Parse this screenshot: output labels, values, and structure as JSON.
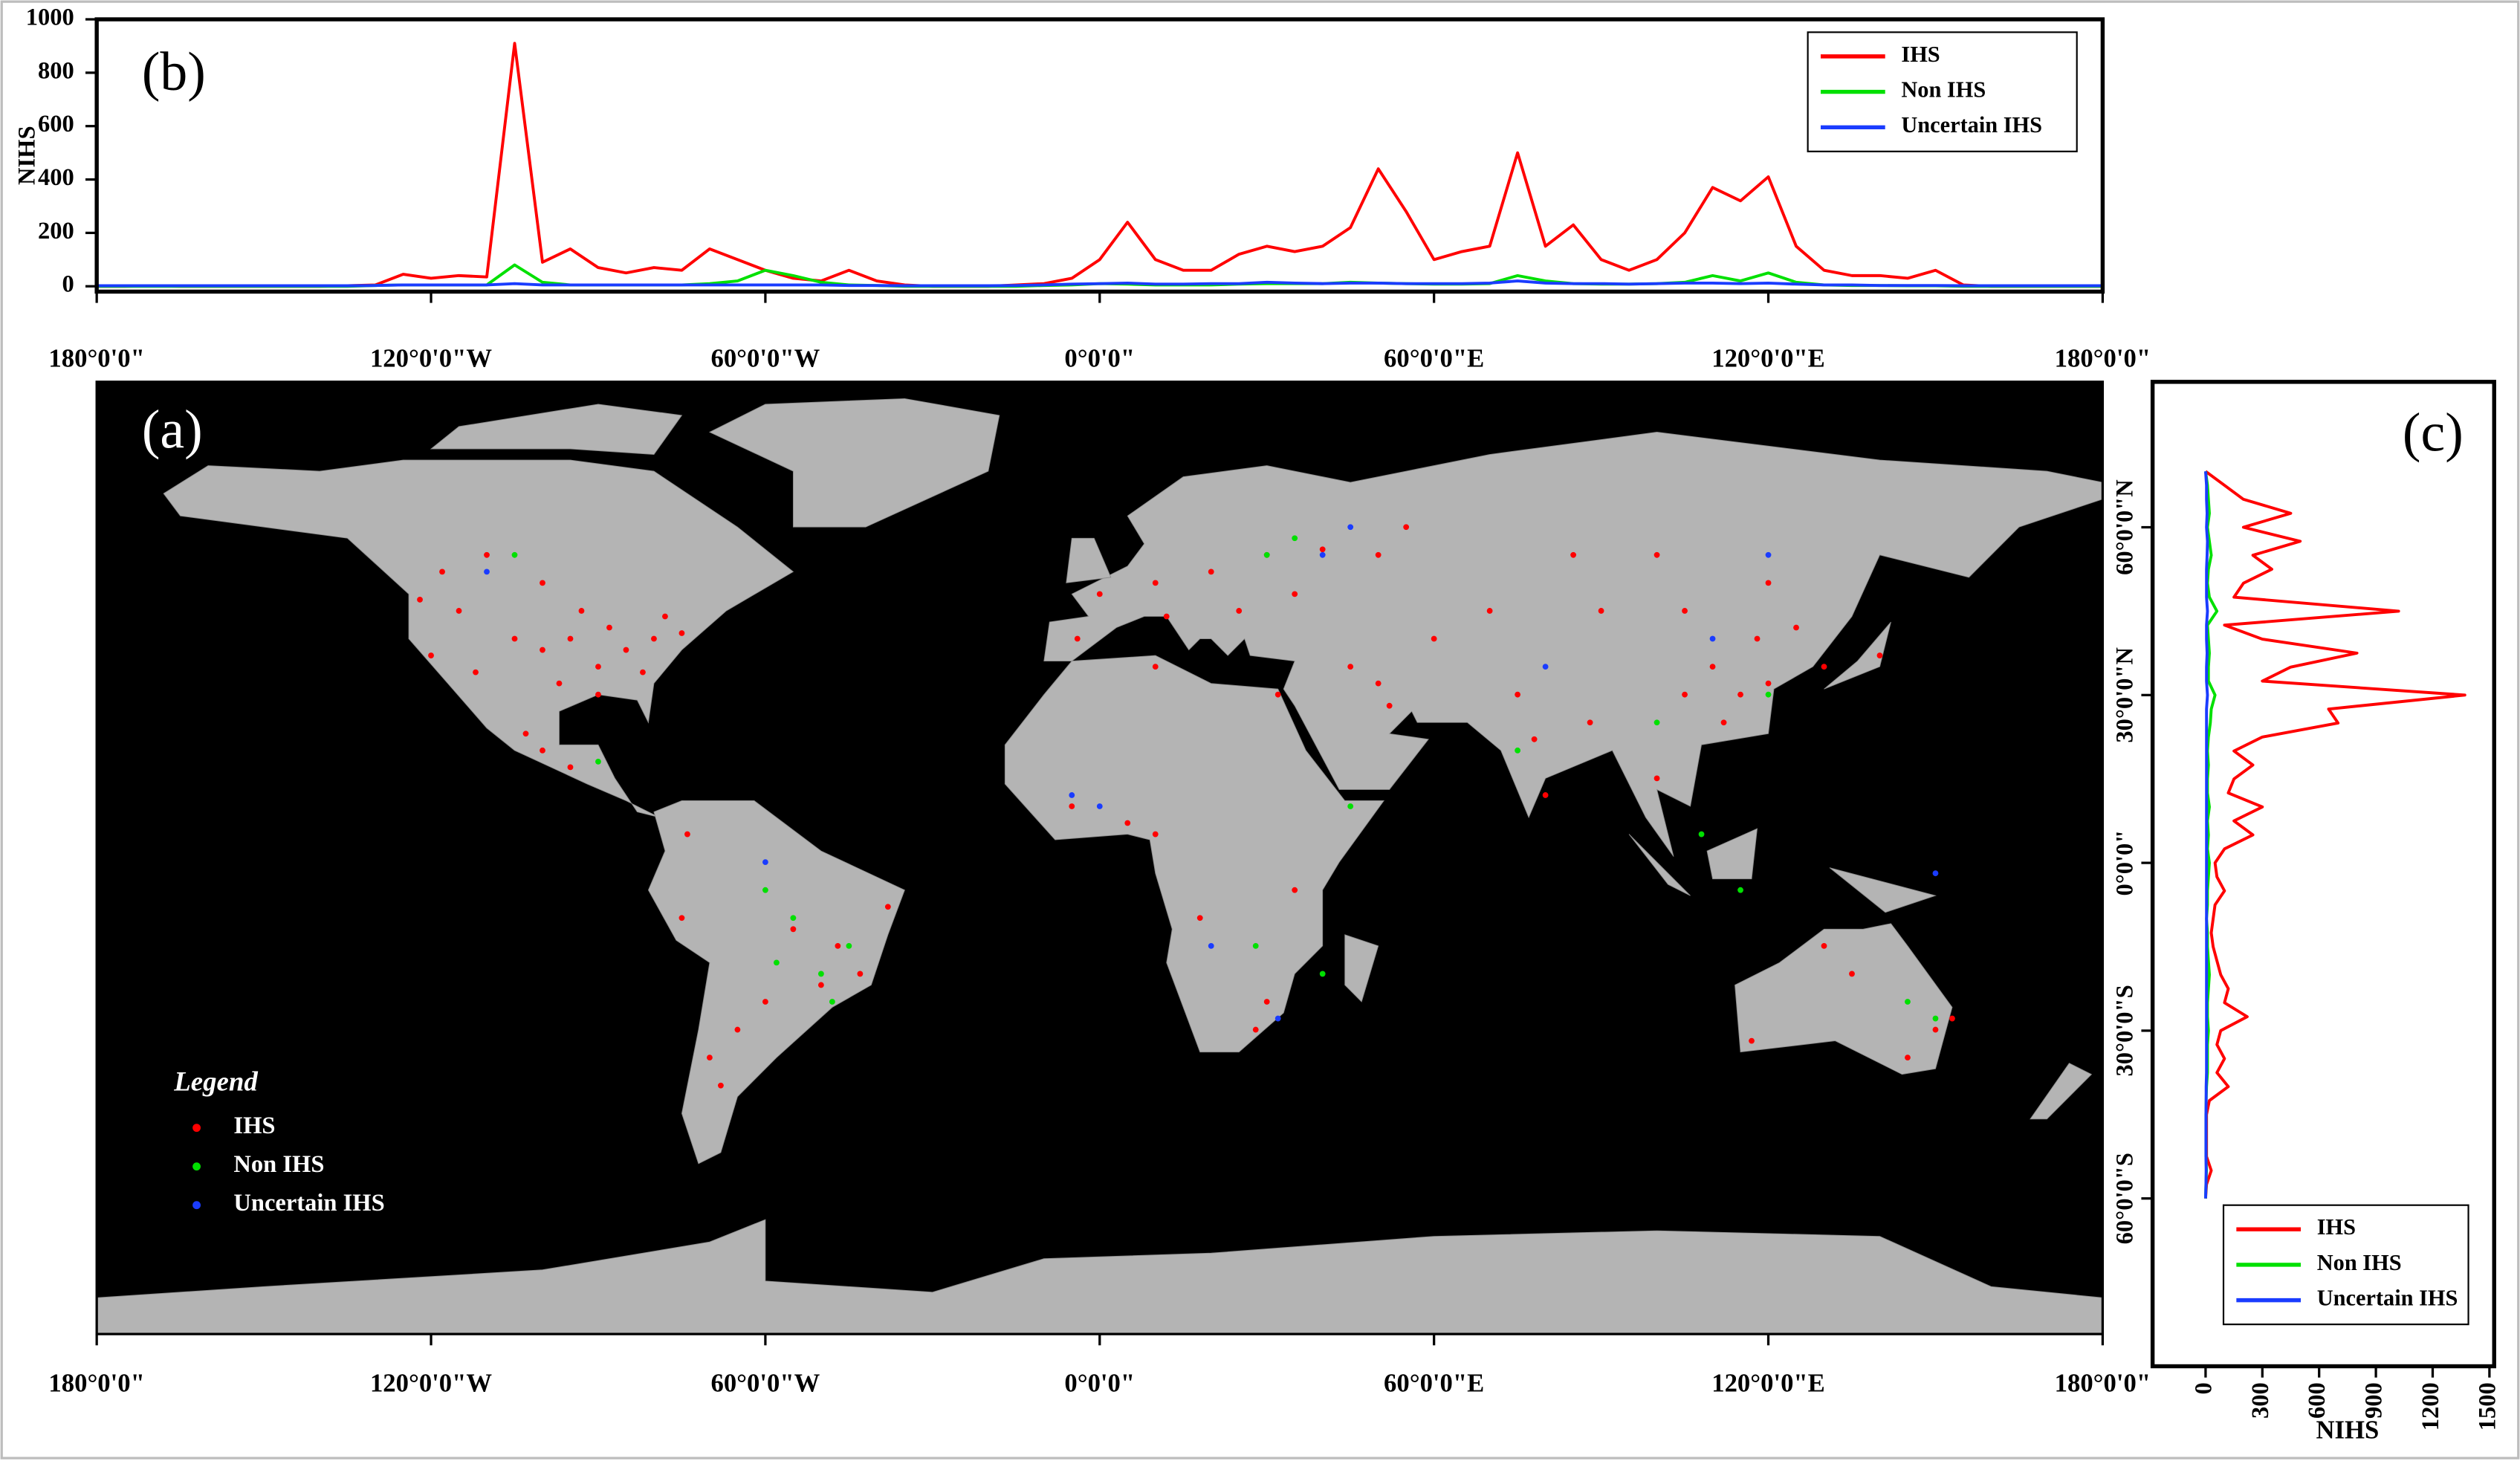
{
  "chart_data": [
    {
      "type": "map",
      "label": "(a)",
      "legend_title": "Legend",
      "background": "#000000",
      "land_color": "#b4b4b4",
      "xlim": [
        -180,
        180
      ],
      "ylim": [
        -84.5,
        86
      ],
      "xticks": [
        {
          "value": -180,
          "label": "180°0'0\""
        },
        {
          "value": -120,
          "label": "120°0'0\"W"
        },
        {
          "value": -60,
          "label": "60°0'0\"W"
        },
        {
          "value": 0,
          "label": "0°0'0\""
        },
        {
          "value": 60,
          "label": "60°0'0\"E"
        },
        {
          "value": 120,
          "label": "120°0'0\"E"
        },
        {
          "value": 180,
          "label": "180°0'0\""
        }
      ],
      "series": [
        {
          "name": "IHS",
          "color": "#ff0000",
          "x": [
            -90,
            -85,
            -80,
            -75,
            -95,
            -88,
            -82,
            -97,
            -100,
            -105,
            -112,
            -120,
            -122,
            -118,
            -110,
            -100,
            -93,
            -78,
            -115,
            -90,
            -100,
            -103,
            -95,
            -47,
            -43,
            -50,
            -55,
            -60,
            -65,
            -70,
            -75,
            -74,
            -68,
            -38,
            0,
            10,
            20,
            30,
            40,
            50,
            55,
            12,
            -4,
            25,
            35,
            5,
            -5,
            10,
            30,
            28,
            35,
            32,
            10,
            18,
            45,
            50,
            52,
            60,
            70,
            75,
            78,
            80,
            88,
            100,
            105,
            110,
            115,
            118,
            112,
            120,
            125,
            105,
            90,
            130,
            140,
            85,
            100,
            120,
            150,
            145,
            117,
            135,
            130,
            153
          ],
          "y": [
            35,
            38,
            40,
            41,
            40,
            42,
            34,
            32,
            38,
            40,
            34,
            37,
            47,
            52,
            55,
            50,
            45,
            44,
            45,
            30,
            20,
            23,
            17,
            -15,
            -20,
            -22,
            -12,
            -25,
            -30,
            -35,
            -10,
            5,
            -40,
            -8,
            48,
            50,
            52,
            55,
            56,
            55,
            60,
            44,
            40,
            45,
            48,
            7,
            10,
            5,
            -25,
            -30,
            -5,
            30,
            35,
            -10,
            35,
            32,
            28,
            40,
            45,
            30,
            22,
            12,
            25,
            15,
            30,
            35,
            30,
            40,
            25,
            32,
            42,
            45,
            45,
            35,
            37,
            55,
            55,
            50,
            -30,
            -35,
            -32,
            -20,
            -15,
            -28
          ]
        },
        {
          "name": "Non IHS",
          "color": "#00e000",
          "x": [
            -50,
            -55,
            -45,
            -60,
            -48,
            -105,
            -90,
            30,
            35,
            28,
            40,
            108,
            115,
            120,
            100,
            145,
            150,
            75,
            45,
            -58
          ],
          "y": [
            -20,
            -10,
            -15,
            -5,
            -25,
            55,
            18,
            55,
            58,
            -15,
            -20,
            5,
            -5,
            30,
            25,
            -25,
            -28,
            20,
            10,
            -18
          ]
        },
        {
          "name": "Uncertain IHS",
          "color": "#1a3cff",
          "x": [
            -110,
            -5,
            0,
            20,
            32,
            40,
            45,
            110,
            80,
            -60,
            150,
            120
          ],
          "y": [
            52,
            12,
            10,
            -15,
            -28,
            55,
            60,
            40,
            35,
            0,
            -2,
            55
          ]
        }
      ]
    },
    {
      "type": "line",
      "label": "(b)",
      "ylabel": "NIHS",
      "legend": "upper right",
      "x": [
        -180,
        -175,
        -170,
        -165,
        -160,
        -155,
        -150,
        -145,
        -140,
        -135,
        -130,
        -125,
        -120,
        -115,
        -110,
        -105,
        -100,
        -95,
        -90,
        -85,
        -80,
        -75,
        -70,
        -65,
        -60,
        -55,
        -50,
        -45,
        -40,
        -35,
        -30,
        -25,
        -20,
        -15,
        -10,
        -5,
        0,
        5,
        10,
        15,
        20,
        25,
        30,
        35,
        40,
        45,
        50,
        55,
        60,
        65,
        70,
        75,
        80,
        85,
        90,
        95,
        100,
        105,
        110,
        115,
        120,
        125,
        130,
        135,
        140,
        145,
        150,
        155,
        160,
        165,
        170,
        175,
        180
      ],
      "xlim": [
        -180,
        180
      ],
      "xticks": [
        {
          "value": -180,
          "label": "180°0'0\""
        },
        {
          "value": -120,
          "label": "120°0'0\"W"
        },
        {
          "value": -60,
          "label": "60°0'0\"W"
        },
        {
          "value": 0,
          "label": "0°0'0\""
        },
        {
          "value": 60,
          "label": "60°0'0\"E"
        },
        {
          "value": 120,
          "label": "120°0'0\"E"
        },
        {
          "value": 180,
          "label": "180°0'0\""
        }
      ],
      "ylim": [
        -20,
        1000
      ],
      "yticks": [
        0,
        200,
        400,
        600,
        800,
        1000
      ],
      "series": [
        {
          "name": "IHS",
          "color": "#ff0000",
          "values": [
            0,
            0,
            2,
            0,
            0,
            0,
            0,
            0,
            0,
            2,
            5,
            45,
            30,
            40,
            35,
            910,
            90,
            140,
            70,
            50,
            70,
            60,
            140,
            100,
            60,
            30,
            20,
            60,
            20,
            5,
            0,
            0,
            0,
            5,
            10,
            30,
            100,
            240,
            100,
            60,
            60,
            120,
            150,
            130,
            150,
            220,
            440,
            280,
            100,
            130,
            150,
            500,
            150,
            230,
            100,
            60,
            100,
            200,
            370,
            320,
            410,
            150,
            60,
            40,
            40,
            30,
            60,
            5,
            0,
            0,
            0,
            0,
            0
          ]
        },
        {
          "name": "Non IHS",
          "color": "#00e000",
          "values": [
            0,
            0,
            0,
            0,
            0,
            0,
            0,
            0,
            0,
            0,
            3,
            5,
            5,
            5,
            5,
            80,
            15,
            5,
            5,
            5,
            5,
            5,
            10,
            20,
            60,
            40,
            15,
            5,
            3,
            0,
            0,
            0,
            0,
            0,
            3,
            5,
            10,
            8,
            5,
            5,
            5,
            8,
            10,
            10,
            10,
            15,
            12,
            10,
            8,
            8,
            10,
            40,
            20,
            10,
            8,
            8,
            10,
            15,
            40,
            20,
            50,
            15,
            5,
            3,
            3,
            2,
            2,
            0,
            0,
            0,
            0,
            0,
            0
          ]
        },
        {
          "name": "Uncertain IHS",
          "color": "#1a3cff",
          "values": [
            2,
            2,
            2,
            2,
            2,
            2,
            2,
            2,
            2,
            2,
            3,
            5,
            5,
            5,
            5,
            10,
            5,
            5,
            5,
            5,
            5,
            5,
            5,
            5,
            5,
            5,
            5,
            3,
            3,
            2,
            2,
            2,
            2,
            3,
            5,
            8,
            10,
            12,
            8,
            8,
            10,
            10,
            15,
            12,
            10,
            12,
            12,
            10,
            10,
            10,
            12,
            20,
            12,
            10,
            10,
            8,
            10,
            12,
            12,
            10,
            12,
            8,
            5,
            5,
            3,
            3,
            3,
            2,
            2,
            2,
            2,
            2,
            2
          ]
        }
      ]
    },
    {
      "type": "line",
      "orientation": "horizontal",
      "label": "(c)",
      "xlabel": "NIHS",
      "legend": "lower right",
      "y": [
        70,
        67.5,
        65,
        62.5,
        60,
        57.5,
        55,
        52.5,
        50,
        47.5,
        45,
        42.5,
        40,
        37.5,
        35,
        32.5,
        30,
        27.5,
        25,
        22.5,
        20,
        17.5,
        15,
        12.5,
        10,
        7.5,
        5,
        2.5,
        0,
        -2.5,
        -5,
        -7.5,
        -10,
        -12.5,
        -15,
        -17.5,
        -20,
        -22.5,
        -25,
        -27.5,
        -30,
        -32.5,
        -35,
        -37.5,
        -40,
        -42.5,
        -45,
        -47.5,
        -50,
        -52.5,
        -55,
        -57.5,
        -60
      ],
      "ylim": [
        -90,
        86
      ],
      "yticks": [
        {
          "value": 60,
          "label": "60°0'0\"N"
        },
        {
          "value": 30,
          "label": "30°0'0\"N"
        },
        {
          "value": 0,
          "label": "0°0'0\""
        },
        {
          "value": -30,
          "label": "30°0'0\"S"
        },
        {
          "value": -60,
          "label": "60°0'0\"S"
        }
      ],
      "xlim": [
        -280,
        1525
      ],
      "xticks": [
        0,
        300,
        600,
        900,
        1200,
        1500
      ],
      "series": [
        {
          "name": "IHS",
          "color": "#ff0000",
          "values": [
            0,
            100,
            200,
            450,
            200,
            500,
            250,
            350,
            200,
            150,
            1020,
            100,
            300,
            800,
            450,
            300,
            1370,
            650,
            700,
            300,
            150,
            250,
            150,
            120,
            300,
            150,
            250,
            100,
            50,
            60,
            100,
            50,
            40,
            30,
            40,
            60,
            80,
            120,
            100,
            220,
            80,
            60,
            100,
            60,
            120,
            20,
            5,
            5,
            5,
            5,
            30,
            5,
            0
          ]
        },
        {
          "name": "Non IHS",
          "color": "#00e000",
          "values": [
            0,
            10,
            15,
            20,
            10,
            20,
            30,
            15,
            10,
            20,
            60,
            10,
            15,
            20,
            15,
            15,
            50,
            30,
            25,
            15,
            10,
            15,
            10,
            10,
            20,
            10,
            15,
            10,
            20,
            15,
            10,
            10,
            5,
            10,
            10,
            15,
            20,
            15,
            10,
            10,
            15,
            10,
            10,
            10,
            5,
            3,
            2,
            2,
            2,
            2,
            5,
            2,
            0
          ]
        },
        {
          "name": "Uncertain IHS",
          "color": "#1a3cff",
          "values": [
            0,
            5,
            5,
            8,
            5,
            10,
            8,
            5,
            5,
            5,
            10,
            5,
            5,
            8,
            5,
            5,
            10,
            5,
            5,
            5,
            5,
            5,
            5,
            5,
            5,
            5,
            5,
            5,
            5,
            5,
            5,
            5,
            5,
            5,
            5,
            5,
            5,
            5,
            5,
            5,
            5,
            5,
            5,
            5,
            3,
            3,
            2,
            2,
            2,
            2,
            3,
            2,
            0
          ]
        }
      ]
    }
  ]
}
